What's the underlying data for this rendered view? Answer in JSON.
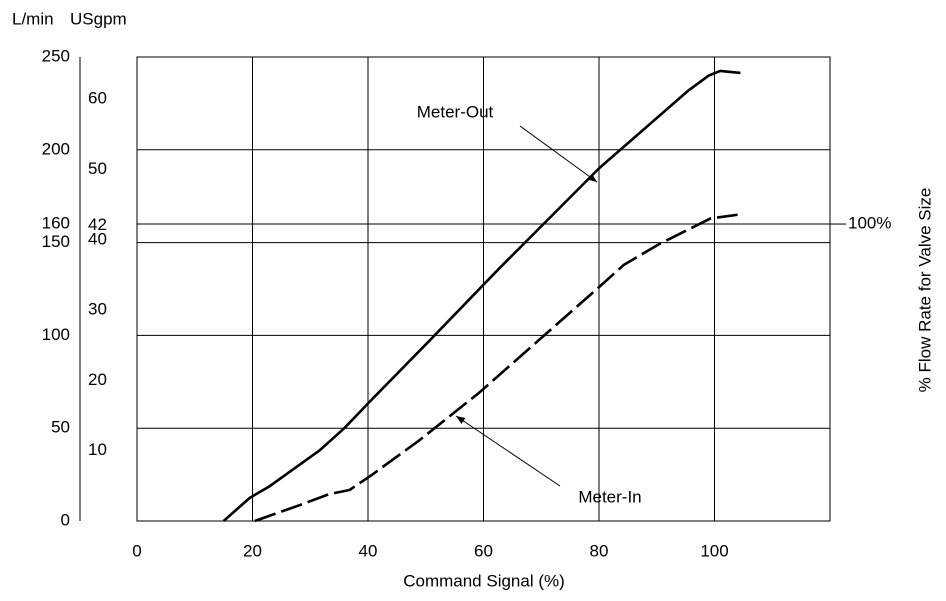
{
  "chart_data": {
    "type": "line",
    "xlabel": "Command Signal (%)",
    "ylabel": "L/min",
    "y2label": "USgpm",
    "right_label": "% Flow Rate for Valve Size",
    "reference": {
      "label": "100%",
      "value": 160
    },
    "xlim": [
      0,
      120
    ],
    "xticks": [
      0,
      20,
      40,
      60,
      80,
      100
    ],
    "ylim": [
      0,
      250
    ],
    "yticks": [
      0,
      50,
      100,
      150,
      160,
      200,
      250
    ],
    "y2lim": [
      0,
      66
    ],
    "y2ticks": [
      10,
      20,
      30,
      40,
      42,
      50,
      60
    ],
    "grid": true,
    "series": [
      {
        "name": "Meter-Out",
        "color": "#000000",
        "dash": "solid",
        "x": [
          15,
          19.5,
          23,
          31.6,
          35.9,
          40.2,
          50.6,
          62.7,
          80,
          95.5,
          99,
          101,
          104.5
        ],
        "values": [
          0,
          12.4,
          18.8,
          38,
          50,
          64,
          97,
          136,
          190,
          232,
          240,
          242.5,
          241.4
        ]
      },
      {
        "name": "Meter-In",
        "color": "#000000",
        "dash": "dashed",
        "x": [
          20.4,
          28.2,
          33.3,
          36.8,
          40.6,
          48.9,
          59.2,
          80,
          84.3,
          90.3,
          99.3,
          104
        ],
        "values": [
          0,
          8.6,
          14.5,
          16.7,
          24.7,
          43.5,
          69,
          126,
          138,
          149,
          163,
          165
        ]
      }
    ]
  }
}
